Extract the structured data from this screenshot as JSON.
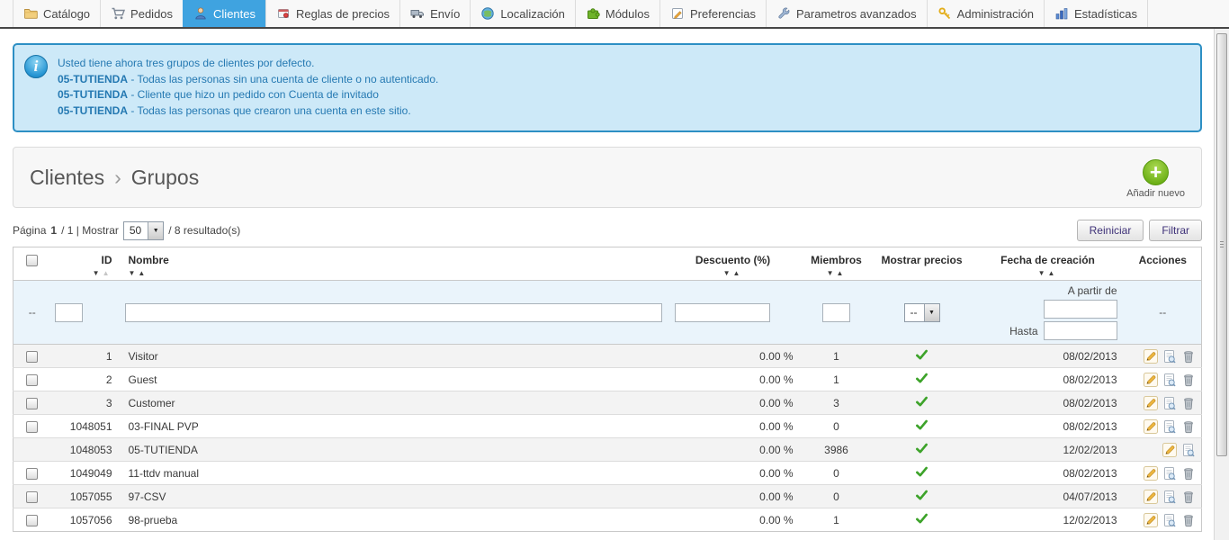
{
  "tabs": [
    {
      "label": "Catálogo",
      "icon": "folder-icon",
      "active": false
    },
    {
      "label": "Pedidos",
      "icon": "cart-icon",
      "active": false
    },
    {
      "label": "Clientes",
      "icon": "customers-icon",
      "active": true
    },
    {
      "label": "Reglas de precios",
      "icon": "price-rules-icon",
      "active": false
    },
    {
      "label": "Envío",
      "icon": "truck-icon",
      "active": false
    },
    {
      "label": "Localización",
      "icon": "globe-icon",
      "active": false
    },
    {
      "label": "Módulos",
      "icon": "puzzle-icon",
      "active": false
    },
    {
      "label": "Preferencias",
      "icon": "preferences-icon",
      "active": false
    },
    {
      "label": "Parametros avanzados",
      "icon": "wrench-icon",
      "active": false
    },
    {
      "label": "Administración",
      "icon": "key-icon",
      "active": false
    },
    {
      "label": "Estadísticas",
      "icon": "stats-icon",
      "active": false
    }
  ],
  "info_box": {
    "lines": [
      {
        "bold": "",
        "text": "Usted tiene ahora tres grupos de clientes por defecto."
      },
      {
        "bold": "05-TUTIENDA",
        "text": " - Todas las personas sin una cuenta de cliente o no autenticado."
      },
      {
        "bold": "05-TUTIENDA",
        "text": " - Cliente que hizo un pedido con Cuenta de invitado"
      },
      {
        "bold": "05-TUTIENDA",
        "text": " - Todas las personas que crearon una cuenta en este sitio."
      }
    ]
  },
  "breadcrumb": {
    "parent": "Clientes",
    "separator": "›",
    "current": "Grupos"
  },
  "add_new": {
    "label": "Añadir nuevo"
  },
  "pagination": {
    "prefix": "Página",
    "page": "1",
    "middle": "/ 1 | Mostrar",
    "page_size": "50",
    "suffix": "/ 8 resultado(s)"
  },
  "toolbar_buttons": {
    "reset": "Reiniciar",
    "filter": "Filtrar"
  },
  "table": {
    "headers": [
      {
        "type": "checkbox",
        "label": ""
      },
      {
        "label": "ID",
        "sort": true,
        "up_muted": true
      },
      {
        "label": "Nombre",
        "sort": true
      },
      {
        "label": "Descuento (%)",
        "sort": true
      },
      {
        "label": "Miembros",
        "sort": true
      },
      {
        "label": "Mostrar precios",
        "sort": false
      },
      {
        "label": "Fecha de creación",
        "sort": true
      },
      {
        "label": "Acciones",
        "sort": false
      }
    ],
    "filter": {
      "checkbox_placeholder": "--",
      "select_value": "--",
      "date_from_label": "A partir de",
      "date_to_label": "Hasta",
      "actions_placeholder": "--"
    },
    "rows": [
      {
        "checkbox": true,
        "id": "1",
        "name": "Visitor",
        "discount": "0.00 %",
        "members": "1",
        "show_prices": true,
        "date": "08/02/2013",
        "actions": [
          "edit",
          "view",
          "delete"
        ]
      },
      {
        "checkbox": true,
        "id": "2",
        "name": "Guest",
        "discount": "0.00 %",
        "members": "1",
        "show_prices": true,
        "date": "08/02/2013",
        "actions": [
          "edit",
          "view",
          "delete"
        ]
      },
      {
        "checkbox": true,
        "id": "3",
        "name": "Customer",
        "discount": "0.00 %",
        "members": "3",
        "show_prices": true,
        "date": "08/02/2013",
        "actions": [
          "edit",
          "view",
          "delete"
        ]
      },
      {
        "checkbox": true,
        "id": "1048051",
        "name": "03-FINAL PVP",
        "discount": "0.00 %",
        "members": "0",
        "show_prices": true,
        "date": "08/02/2013",
        "actions": [
          "edit",
          "view",
          "delete"
        ]
      },
      {
        "checkbox": false,
        "id": "1048053",
        "name": "05-TUTIENDA",
        "discount": "0.00 %",
        "members": "3986",
        "show_prices": true,
        "date": "12/02/2013",
        "actions": [
          "edit",
          "view"
        ]
      },
      {
        "checkbox": true,
        "id": "1049049",
        "name": "11-ttdv manual",
        "discount": "0.00 %",
        "members": "0",
        "show_prices": true,
        "date": "08/02/2013",
        "actions": [
          "edit",
          "view",
          "delete"
        ]
      },
      {
        "checkbox": true,
        "id": "1057055",
        "name": "97-CSV",
        "discount": "0.00 %",
        "members": "0",
        "show_prices": true,
        "date": "04/07/2013",
        "actions": [
          "edit",
          "view",
          "delete"
        ]
      },
      {
        "checkbox": true,
        "id": "1057056",
        "name": "98-prueba",
        "discount": "0.00 %",
        "members": "1",
        "show_prices": true,
        "date": "12/02/2013",
        "actions": [
          "edit",
          "view",
          "delete"
        ]
      }
    ]
  },
  "colors": {
    "active_tab": "#3fa3e0",
    "info_border": "#2d8fc4",
    "info_bg": "#cde9f8",
    "info_text": "#2579b2",
    "add_green": "#6aae14",
    "check_green": "#3da32a",
    "filter_row_bg": "#eaf4fb"
  }
}
